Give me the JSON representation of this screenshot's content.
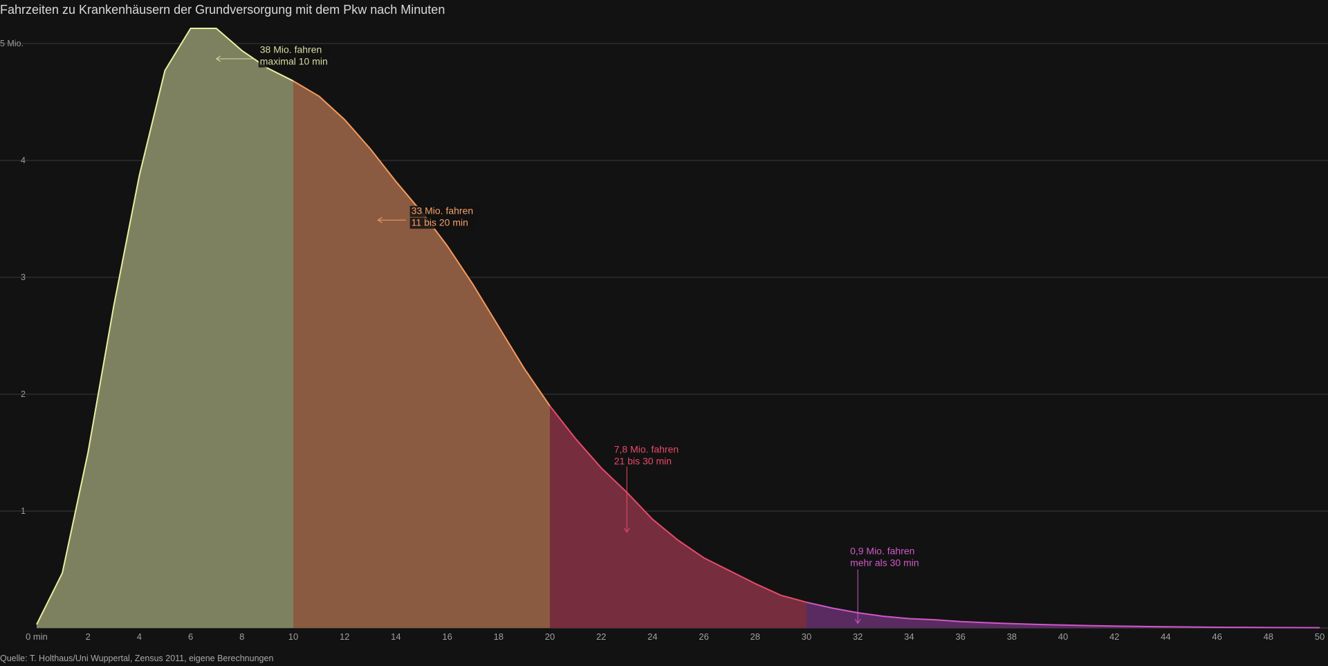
{
  "title": "Fahrzeiten zu Krankenhäusern der Grundversorgung mit dem Pkw nach Minuten",
  "source": "Quelle: T. Holthaus/Uni Wuppertal, Zensus 2011, eigene Berechnungen",
  "chart_data": {
    "type": "area",
    "title": "Fahrzeiten zu Krankenhäusern der Grundversorgung mit dem Pkw nach Minuten",
    "xlabel": "",
    "ylabel": "",
    "xlim": [
      0,
      50
    ],
    "ylim": [
      0,
      5
    ],
    "grid": true,
    "y_ticks": [
      {
        "value": 1,
        "label": "1"
      },
      {
        "value": 2,
        "label": "2"
      },
      {
        "value": 3,
        "label": "3"
      },
      {
        "value": 4,
        "label": "4"
      },
      {
        "value": 5,
        "label": "5 Mio."
      }
    ],
    "x_ticks": [
      {
        "value": 0,
        "label": "0 min"
      },
      {
        "value": 2,
        "label": "2"
      },
      {
        "value": 4,
        "label": "4"
      },
      {
        "value": 6,
        "label": "6"
      },
      {
        "value": 8,
        "label": "8"
      },
      {
        "value": 10,
        "label": "10"
      },
      {
        "value": 12,
        "label": "12"
      },
      {
        "value": 14,
        "label": "14"
      },
      {
        "value": 16,
        "label": "16"
      },
      {
        "value": 18,
        "label": "18"
      },
      {
        "value": 20,
        "label": "20"
      },
      {
        "value": 22,
        "label": "22"
      },
      {
        "value": 24,
        "label": "24"
      },
      {
        "value": 26,
        "label": "26"
      },
      {
        "value": 28,
        "label": "28"
      },
      {
        "value": 30,
        "label": "30"
      },
      {
        "value": 32,
        "label": "32"
      },
      {
        "value": 34,
        "label": "34"
      },
      {
        "value": 36,
        "label": "36"
      },
      {
        "value": 38,
        "label": "38"
      },
      {
        "value": 40,
        "label": "40"
      },
      {
        "value": 42,
        "label": "42"
      },
      {
        "value": 44,
        "label": "44"
      },
      {
        "value": 46,
        "label": "46"
      },
      {
        "value": 48,
        "label": "48"
      },
      {
        "value": 50,
        "label": "50"
      }
    ],
    "x": [
      0,
      1,
      2,
      3,
      4,
      5,
      6,
      7,
      8,
      9,
      10,
      11,
      12,
      13,
      14,
      15,
      16,
      17,
      18,
      19,
      20,
      21,
      22,
      23,
      24,
      25,
      26,
      27,
      28,
      29,
      30,
      31,
      32,
      33,
      34,
      35,
      36,
      37,
      38,
      39,
      40,
      41,
      42,
      43,
      44,
      45,
      46,
      47,
      48,
      49,
      50
    ],
    "y": [
      0.03,
      0.47,
      1.5,
      2.75,
      3.87,
      4.77,
      5.13,
      5.13,
      4.94,
      4.79,
      4.68,
      4.55,
      4.35,
      4.1,
      3.82,
      3.56,
      3.27,
      2.94,
      2.58,
      2.22,
      1.9,
      1.62,
      1.37,
      1.16,
      0.93,
      0.75,
      0.6,
      0.49,
      0.38,
      0.28,
      0.22,
      0.17,
      0.13,
      0.1,
      0.08,
      0.07,
      0.055,
      0.045,
      0.037,
      0.03,
      0.025,
      0.02,
      0.016,
      0.013,
      0.01,
      0.008,
      0.006,
      0.005,
      0.004,
      0.003,
      0.002
    ],
    "segments": [
      {
        "from": 0,
        "to": 10,
        "color": "#e8f0a0",
        "fill": "#7e8160"
      },
      {
        "from": 10,
        "to": 20,
        "color": "#f79a5c",
        "fill": "#8a5b40"
      },
      {
        "from": 20,
        "to": 30,
        "color": "#e84a6a",
        "fill": "#762d3e"
      },
      {
        "from": 30,
        "to": 50,
        "color": "#cf58c9",
        "fill": "#5a2b60"
      }
    ],
    "annotations": [
      {
        "lines": [
          "38 Mio. fahren",
          "maximal 10 min"
        ],
        "color": "#d9dca0",
        "at_x": 8.7,
        "at_y": 4.87,
        "arrow": "left",
        "arrow_to_x": 7.0,
        "arrow_y": 4.87,
        "boxed": true
      },
      {
        "lines": [
          "33 Mio. fahren",
          "11 bis 20 min"
        ],
        "color": "#f5a06a",
        "at_x": 14.6,
        "at_y": 3.49,
        "arrow": "left",
        "arrow_to_x": 13.3,
        "arrow_y": 3.49,
        "boxed": true
      },
      {
        "lines": [
          "7,8 Mio. fahren",
          "21 bis 30 min"
        ],
        "color": "#e84a6a",
        "at_x": 22.5,
        "at_y": 1.45,
        "arrow": "down",
        "arrow_x": 23.0,
        "arrow_from_y": 1.38,
        "arrow_to_y": 0.82,
        "boxed": false
      },
      {
        "lines": [
          "0,9 Mio. fahren",
          "mehr als 30 min"
        ],
        "color": "#d059c9",
        "at_x": 31.7,
        "at_y": 0.58,
        "arrow": "down",
        "arrow_x": 32.0,
        "arrow_from_y": 0.5,
        "arrow_to_y": 0.04,
        "boxed": false
      }
    ]
  }
}
